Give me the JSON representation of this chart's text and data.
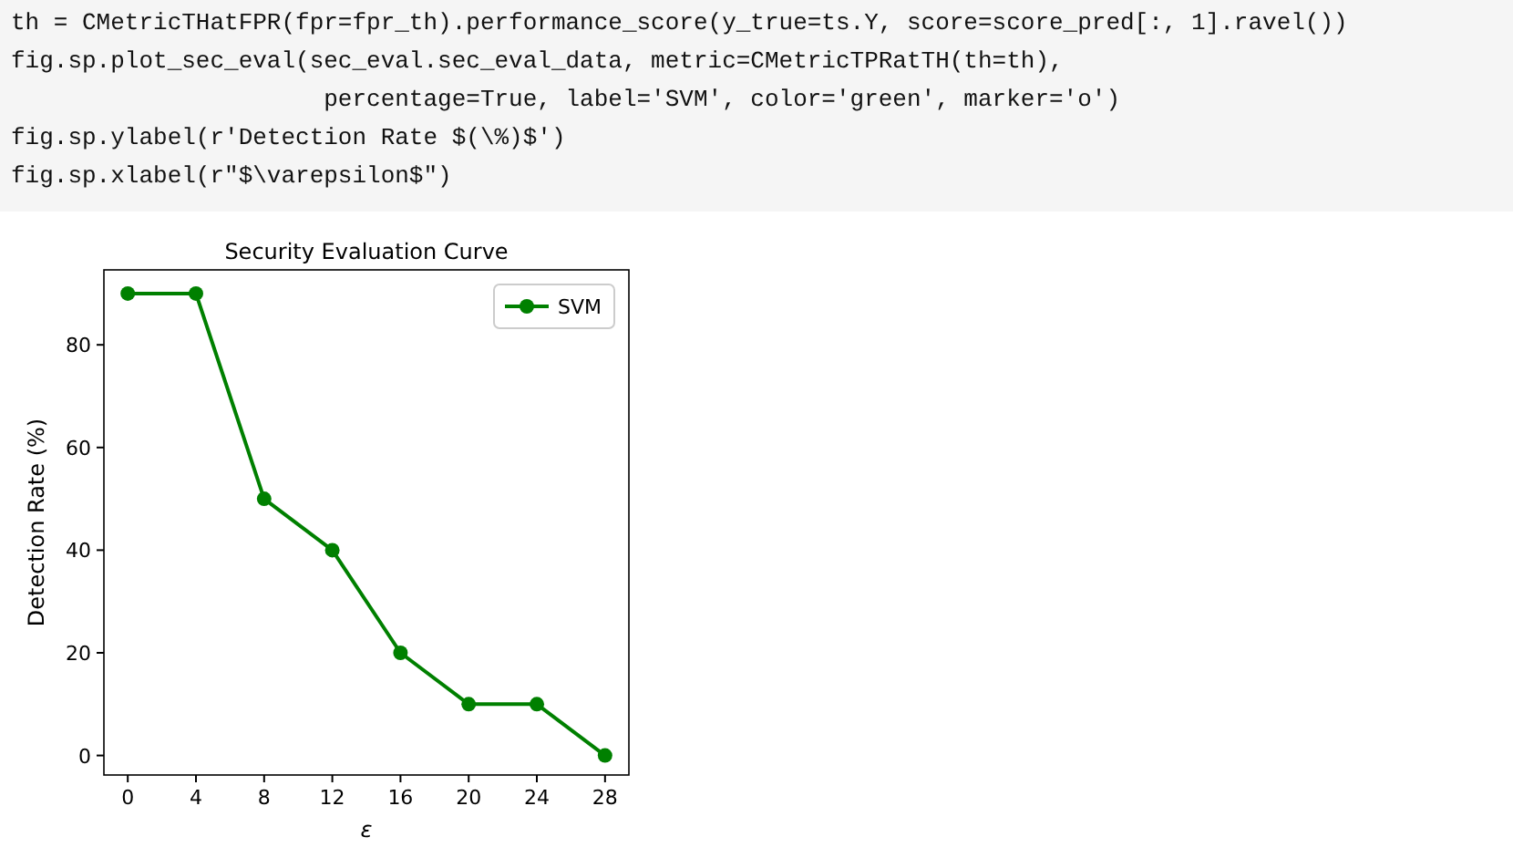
{
  "chart_data": {
    "type": "line",
    "title": "Security Evaluation Curve",
    "xlabel": "ε",
    "ylabel": "Detection Rate (%)",
    "annotations": [
      "th = CMetricTHatFPR(fpr=fpr_th).performance_score(y_true=ts.Y, score=score_pred[:, 1].ravel())",
      "fig.sp.plot_sec_eval(sec_eval.sec_eval_data, metric=CMetricTPRatTH(th=th),",
      "                      percentage=True, label='SVM', color='green', marker='o')",
      "fig.sp.ylabel(r'Detection Rate $(\\%)$')",
      "fig.sp.xlabel(r\"$\\varepsilon$\")"
    ],
    "x": [
      0,
      4,
      8,
      12,
      16,
      20,
      24,
      28
    ],
    "series": [
      {
        "name": "SVM",
        "color": "#008000",
        "values": [
          90,
          90,
          50,
          40,
          20,
          10,
          10,
          0
        ]
      }
    ],
    "xlim": [
      -1.4,
      29.4
    ],
    "ylim": [
      -3.8,
      94.6
    ],
    "xticks": [
      0,
      4,
      8,
      12,
      16,
      20,
      24,
      28
    ],
    "yticks": [
      0,
      20,
      40,
      60,
      80
    ],
    "grid": false,
    "legend": "top right",
    "marker": "circle",
    "line_style": "solid"
  }
}
